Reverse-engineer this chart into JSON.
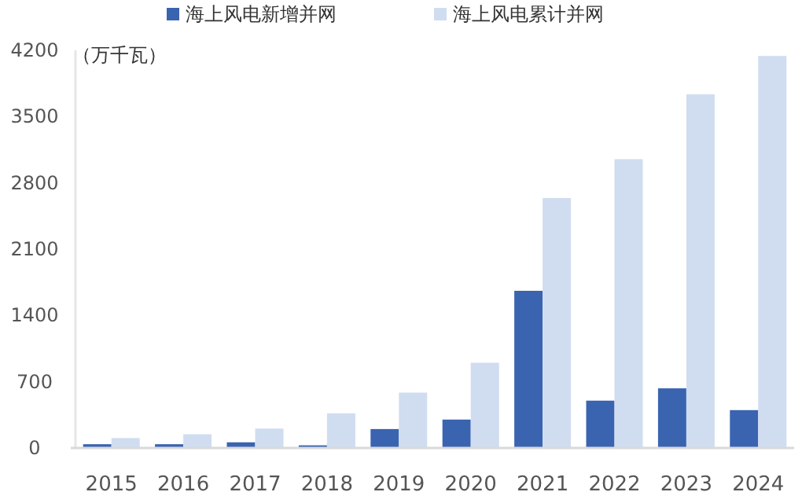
{
  "chart_data": {
    "type": "bar",
    "ylabel": "（万千瓦）",
    "categories": [
      "2015",
      "2016",
      "2017",
      "2018",
      "2019",
      "2020",
      "2021",
      "2022",
      "2023",
      "2024"
    ],
    "series": [
      {
        "name": "海上风电新增并网",
        "color": "#3a64b0",
        "values": [
          40,
          40,
          60,
          28,
          200,
          300,
          1660,
          500,
          630,
          400
        ]
      },
      {
        "name": "海上风电累计并网",
        "color": "#d0ddf0",
        "values": [
          105,
          145,
          205,
          365,
          585,
          900,
          2640,
          3050,
          3735,
          4140
        ]
      }
    ],
    "ylim": [
      0,
      4200
    ],
    "yticks": [
      0,
      700,
      1400,
      2100,
      2800,
      3500,
      4200
    ],
    "grid": false,
    "legend": "top"
  }
}
